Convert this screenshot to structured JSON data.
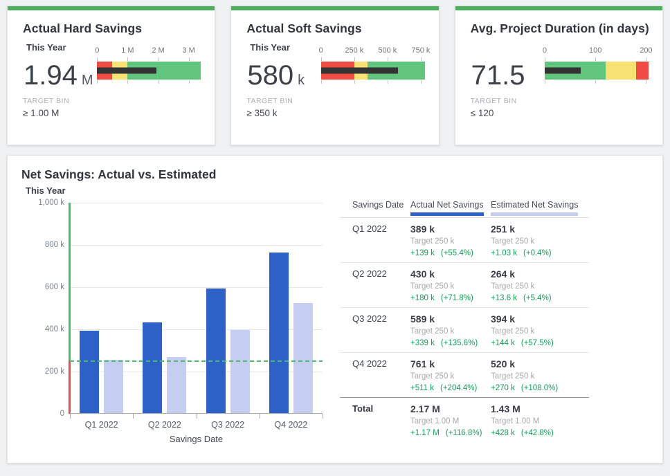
{
  "colors": {
    "accent_green": "#4caf5c",
    "bullet_red": "#ef4b42",
    "bullet_yellow": "#f8e173",
    "bullet_green": "#62c57d",
    "measure_black": "#333333",
    "bar_actual_blue": "#2e61c7",
    "bar_estimated_lavender": "#c5cdf0",
    "target_line_green": "#4cbb71",
    "axis_red": "#e84b4b",
    "delta_green": "#149e57"
  },
  "kpi_cards": [
    {
      "title": "Actual Hard Savings",
      "subtitle": "This Year",
      "value": "1.94",
      "unit": "M",
      "target_label": "TARGET BIN",
      "target_value": "≥ 1.00 M",
      "bullet": {
        "axis_max": 3.4,
        "measure_value": 1.94,
        "measure_pct": 57.1,
        "ticks": [
          {
            "label": "0",
            "pos": 0
          },
          {
            "label": "1 M",
            "pos": 29.4
          },
          {
            "label": "2 M",
            "pos": 58.8
          },
          {
            "label": "3 M",
            "pos": 88.2
          }
        ],
        "segments": [
          {
            "name": "red",
            "color": "#ef4b42",
            "from": 0,
            "to": 14.7
          },
          {
            "name": "yellow",
            "color": "#f8e173",
            "from": 14.7,
            "to": 29.4
          },
          {
            "name": "green",
            "color": "#62c57d",
            "from": 29.4,
            "to": 100
          }
        ]
      }
    },
    {
      "title": "Actual Soft Savings",
      "subtitle": "This Year",
      "value": "580",
      "unit": "k",
      "target_label": "TARGET BIN",
      "target_value": "≥ 350 k",
      "bullet": {
        "axis_max": 780,
        "measure_value": 580,
        "measure_pct": 74.4,
        "ticks": [
          {
            "label": "0",
            "pos": 0
          },
          {
            "label": "250 k",
            "pos": 32.1
          },
          {
            "label": "500 k",
            "pos": 64.1
          },
          {
            "label": "750 k",
            "pos": 96.2
          }
        ],
        "segments": [
          {
            "name": "red",
            "color": "#ef4b42",
            "from": 0,
            "to": 32.1
          },
          {
            "name": "yellow",
            "color": "#f8e173",
            "from": 32.1,
            "to": 44.9
          },
          {
            "name": "green",
            "color": "#62c57d",
            "from": 44.9,
            "to": 100
          }
        ]
      }
    },
    {
      "title": "Avg. Project Duration (in days)",
      "subtitle": "",
      "value": "71.5",
      "unit": "",
      "target_label": "TARGET BIN",
      "target_value": "≤ 120",
      "bullet": {
        "axis_max": 205,
        "measure_value": 71.5,
        "measure_pct": 34.9,
        "ticks": [
          {
            "label": "0",
            "pos": 0
          },
          {
            "label": "100",
            "pos": 48.8
          },
          {
            "label": "200",
            "pos": 97.6
          }
        ],
        "segments": [
          {
            "name": "green",
            "color": "#62c57d",
            "from": 0,
            "to": 58.5
          },
          {
            "name": "yellow",
            "color": "#f8e173",
            "from": 58.5,
            "to": 87.8
          },
          {
            "name": "red",
            "color": "#ef4b42",
            "from": 87.8,
            "to": 100
          }
        ]
      }
    }
  ],
  "main": {
    "title": "Net Savings: Actual vs. Estimated",
    "subtitle": "This Year",
    "chart_data": {
      "type": "bar",
      "title": "Net Savings: Actual vs. Estimated",
      "subtitle": "This Year",
      "categories": [
        "Q1 2022",
        "Q2 2022",
        "Q3 2022",
        "Q4 2022"
      ],
      "series": [
        {
          "name": "Actual Net Savings",
          "color": "#2e61c7",
          "values": [
            389,
            430,
            589,
            761
          ]
        },
        {
          "name": "Estimated Net Savings",
          "color": "#c5cdf0",
          "values": [
            251,
            264,
            394,
            520
          ]
        }
      ],
      "unit": "k",
      "xlabel": "Savings Date",
      "ylabel": "",
      "ylim": [
        0,
        1000
      ],
      "yticks": [
        {
          "value": 1000,
          "label": "1,000 k"
        },
        {
          "value": 800,
          "label": "800 k"
        },
        {
          "value": 600,
          "label": "600 k"
        },
        {
          "value": 400,
          "label": "400 k"
        },
        {
          "value": 200,
          "label": "200 k"
        },
        {
          "value": 0,
          "label": "0"
        }
      ],
      "target_line": {
        "value": 250,
        "color": "#4cbb71",
        "style": "dashed"
      },
      "axis_color_above_target": "#4cbb71",
      "axis_color_below_target": "#e84b4b",
      "grid": true,
      "legend_position": "table-header"
    },
    "table": {
      "columns": [
        {
          "label": "Savings Date",
          "bar_color": null
        },
        {
          "label": "Actual Net Savings",
          "bar_color": "#2e61c7"
        },
        {
          "label": "Estimated Net Savings",
          "bar_color": "#c5cdf0"
        }
      ],
      "delta_color": "#149e57",
      "rows": [
        {
          "date": "Q1 2022",
          "actual": {
            "value": "389 k",
            "target": "Target 250 k",
            "delta": "+139 k",
            "pct": "(+55.4%)"
          },
          "estimated": {
            "value": "251 k",
            "target": "Target 250 k",
            "delta": "+1.03 k",
            "pct": "(+0.4%)"
          }
        },
        {
          "date": "Q2 2022",
          "actual": {
            "value": "430 k",
            "target": "Target 250 k",
            "delta": "+180 k",
            "pct": "(+71.8%)"
          },
          "estimated": {
            "value": "264 k",
            "target": "Target 250 k",
            "delta": "+13.6 k",
            "pct": "(+5.4%)"
          }
        },
        {
          "date": "Q3 2022",
          "actual": {
            "value": "589 k",
            "target": "Target 250 k",
            "delta": "+339 k",
            "pct": "(+135.6%)"
          },
          "estimated": {
            "value": "394 k",
            "target": "Target 250 k",
            "delta": "+144 k",
            "pct": "(+57.5%)"
          }
        },
        {
          "date": "Q4 2022",
          "actual": {
            "value": "761 k",
            "target": "Target 250 k",
            "delta": "+511 k",
            "pct": "(+204.4%)"
          },
          "estimated": {
            "value": "520 k",
            "target": "Target 250 k",
            "delta": "+270 k",
            "pct": "(+108.0%)"
          }
        }
      ],
      "total": {
        "date": "Total",
        "actual": {
          "value": "2.17 M",
          "target": "Target 1.00 M",
          "delta": "+1.17 M",
          "pct": "(+116.8%)"
        },
        "estimated": {
          "value": "1.43 M",
          "target": "Target 1.00 M",
          "delta": "+428 k",
          "pct": "(+42.8%)"
        }
      }
    }
  }
}
